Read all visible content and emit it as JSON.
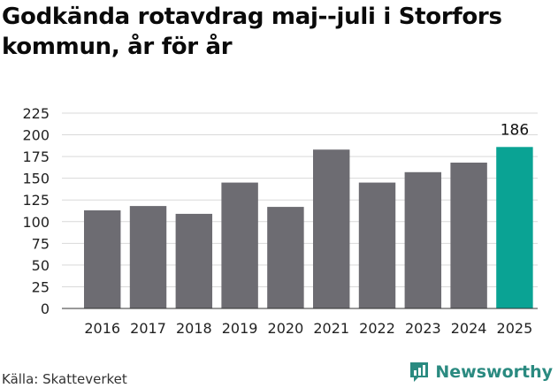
{
  "title_lines": [
    "Godkända rotavdrag maj--juli i Storfors",
    "kommun, år för år"
  ],
  "source": "Källa: Skatteverket",
  "brand": "Newsworthy",
  "colors": {
    "bar": "#6d6c72",
    "highlight": "#0aa394",
    "grid": "#d9d9d9",
    "brand": "#2a8a80"
  },
  "chart_data": {
    "type": "bar",
    "categories": [
      "2016",
      "2017",
      "2018",
      "2019",
      "2020",
      "2021",
      "2022",
      "2023",
      "2024",
      "2025"
    ],
    "values": [
      113,
      118,
      109,
      145,
      117,
      183,
      145,
      157,
      168,
      186
    ],
    "highlight_index": 9,
    "data_labels": [
      {
        "index": 9,
        "text": "186"
      }
    ],
    "ylim": [
      0,
      225
    ],
    "yticks": [
      0,
      25,
      50,
      75,
      100,
      125,
      150,
      175,
      200,
      225
    ],
    "grid": true,
    "xlabel": "",
    "ylabel": ""
  }
}
